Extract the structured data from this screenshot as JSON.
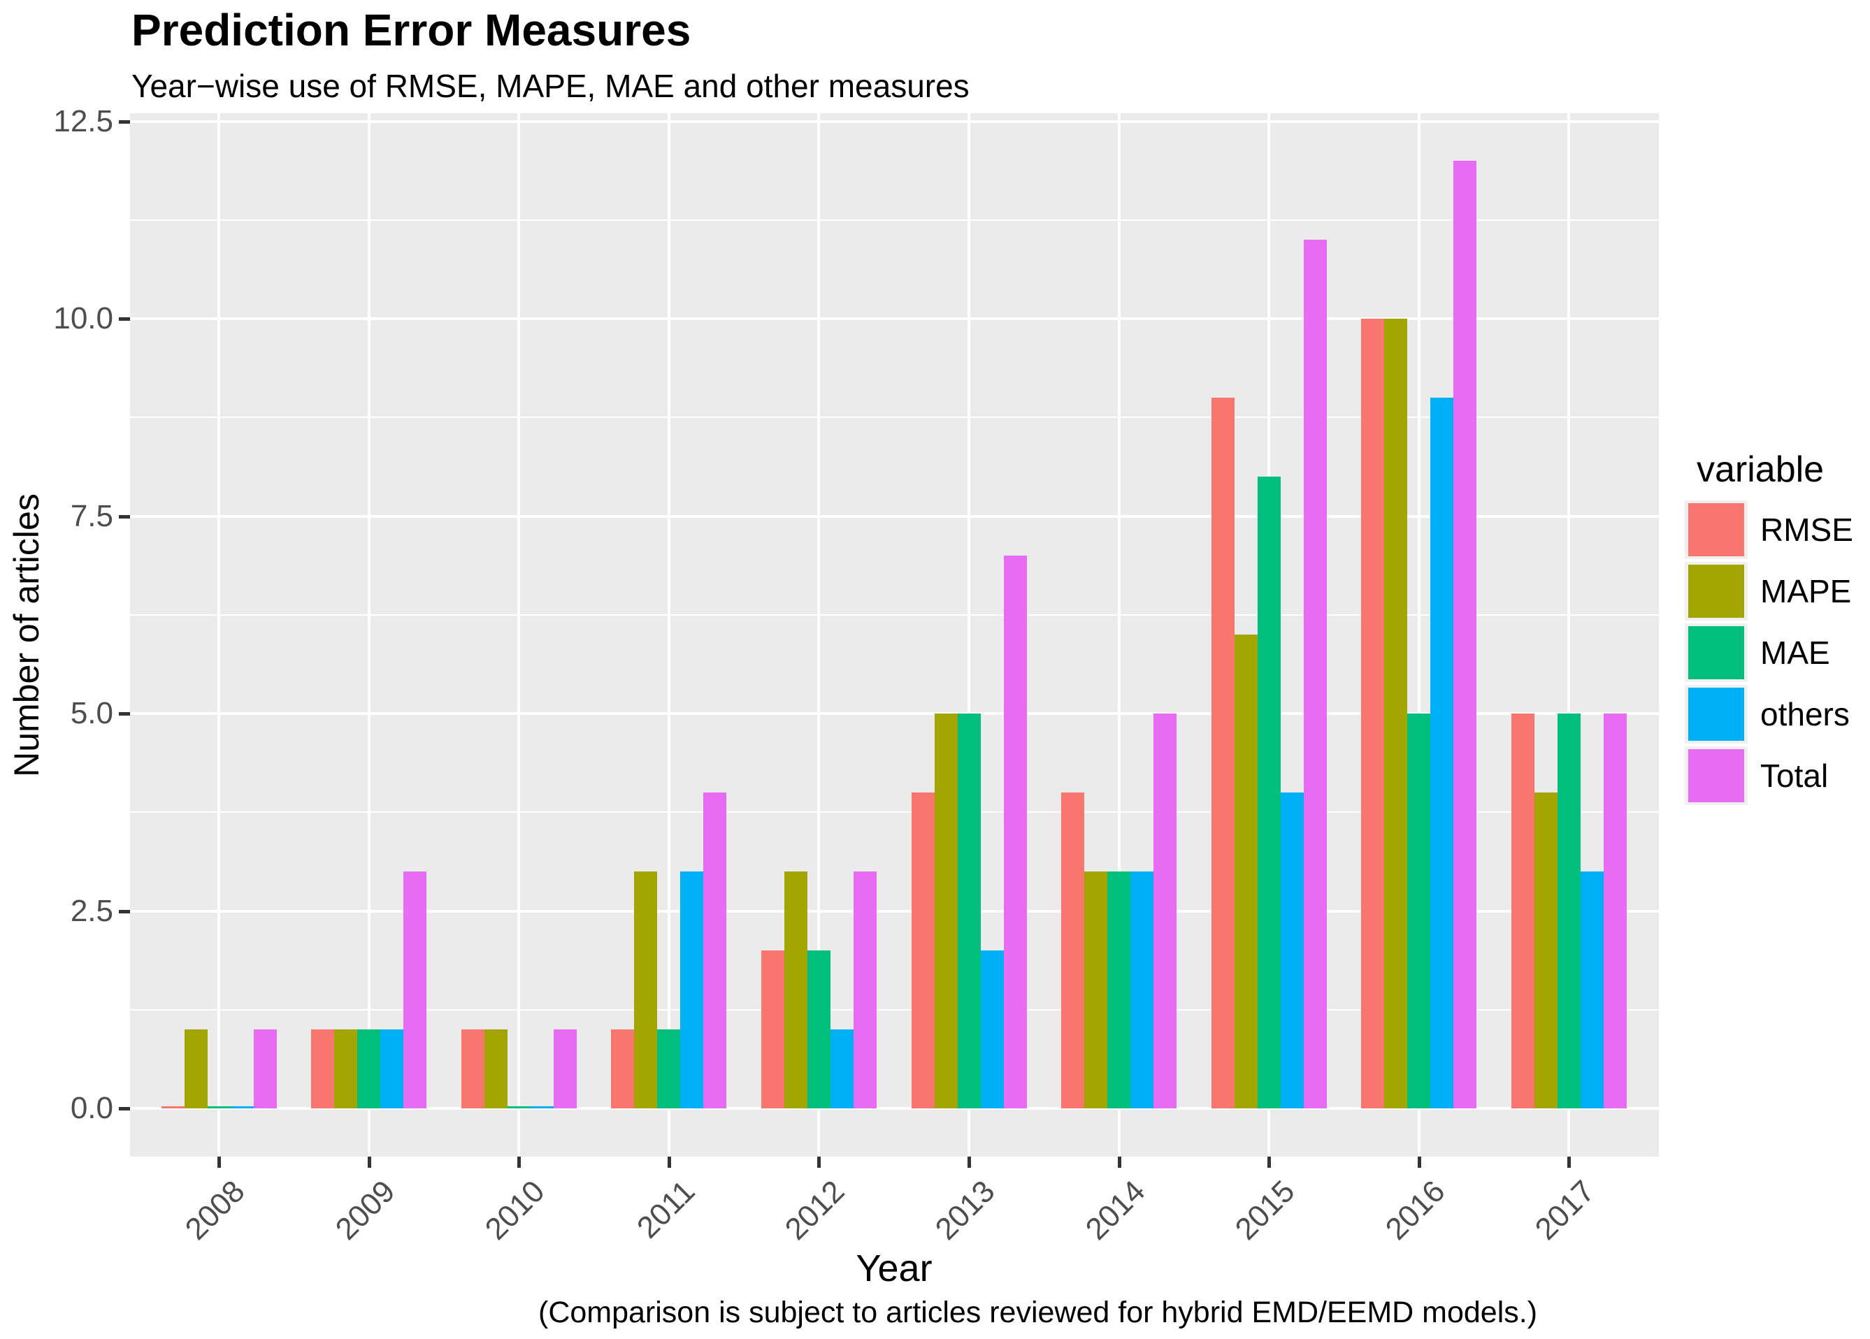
{
  "title": "Prediction Error Measures",
  "subtitle": "Year−wise use of RMSE, MAPE, MAE and other measures",
  "y_axis_title": "Number of articles",
  "x_axis_title": "Year",
  "caption": "(Comparison is subject to articles reviewed for hybrid EMD/EEMD models.)",
  "legend_title": "variable",
  "colors": {
    "panel_background": "#EBEBEB",
    "gridline": "#FFFFFF",
    "tick_mark": "#333333",
    "tick_label": "#4D4D4D",
    "rmse": "#F8766D",
    "mape": "#A3A500",
    "mae": "#00BF7D",
    "others": "#00B0F6",
    "total": "#E76BF3"
  },
  "chart_data": {
    "type": "bar",
    "grouping": "dodge",
    "title": "Prediction Error Measures",
    "subtitle": "Year−wise use of RMSE, MAPE, MAE and other measures",
    "xlabel": "Year",
    "ylabel": "Number of articles",
    "caption": "(Comparison is subject to articles reviewed for hybrid EMD/EEMD models.)",
    "legend_title": "variable",
    "legend_position": "right",
    "grid": true,
    "categories": [
      "2008",
      "2009",
      "2010",
      "2011",
      "2012",
      "2013",
      "2014",
      "2015",
      "2016",
      "2017"
    ],
    "series": [
      {
        "name": "RMSE",
        "color": "#F8766D",
        "values": [
          0,
          1,
          1,
          1,
          2,
          4,
          4,
          9,
          10,
          5
        ]
      },
      {
        "name": "MAPE",
        "color": "#A3A500",
        "values": [
          1,
          1,
          1,
          3,
          3,
          5,
          3,
          6,
          10,
          4
        ]
      },
      {
        "name": "MAE",
        "color": "#00BF7D",
        "values": [
          0,
          1,
          0,
          1,
          2,
          5,
          3,
          8,
          5,
          5
        ]
      },
      {
        "name": "others",
        "color": "#00B0F6",
        "values": [
          0,
          1,
          0,
          3,
          1,
          2,
          3,
          4,
          9,
          3
        ]
      },
      {
        "name": "Total",
        "color": "#E76BF3",
        "values": [
          1,
          3,
          1,
          4,
          3,
          7,
          5,
          11,
          12,
          5
        ]
      }
    ],
    "ylim": [
      0,
      12.5
    ],
    "y_ticks": [
      {
        "label": "0.0",
        "value": 0
      },
      {
        "label": "2.5",
        "value": 2.5
      },
      {
        "label": "5.0",
        "value": 5
      },
      {
        "label": "7.5",
        "value": 7.5
      },
      {
        "label": "10.0",
        "value": 10
      },
      {
        "label": "12.5",
        "value": 12.5
      }
    ]
  }
}
